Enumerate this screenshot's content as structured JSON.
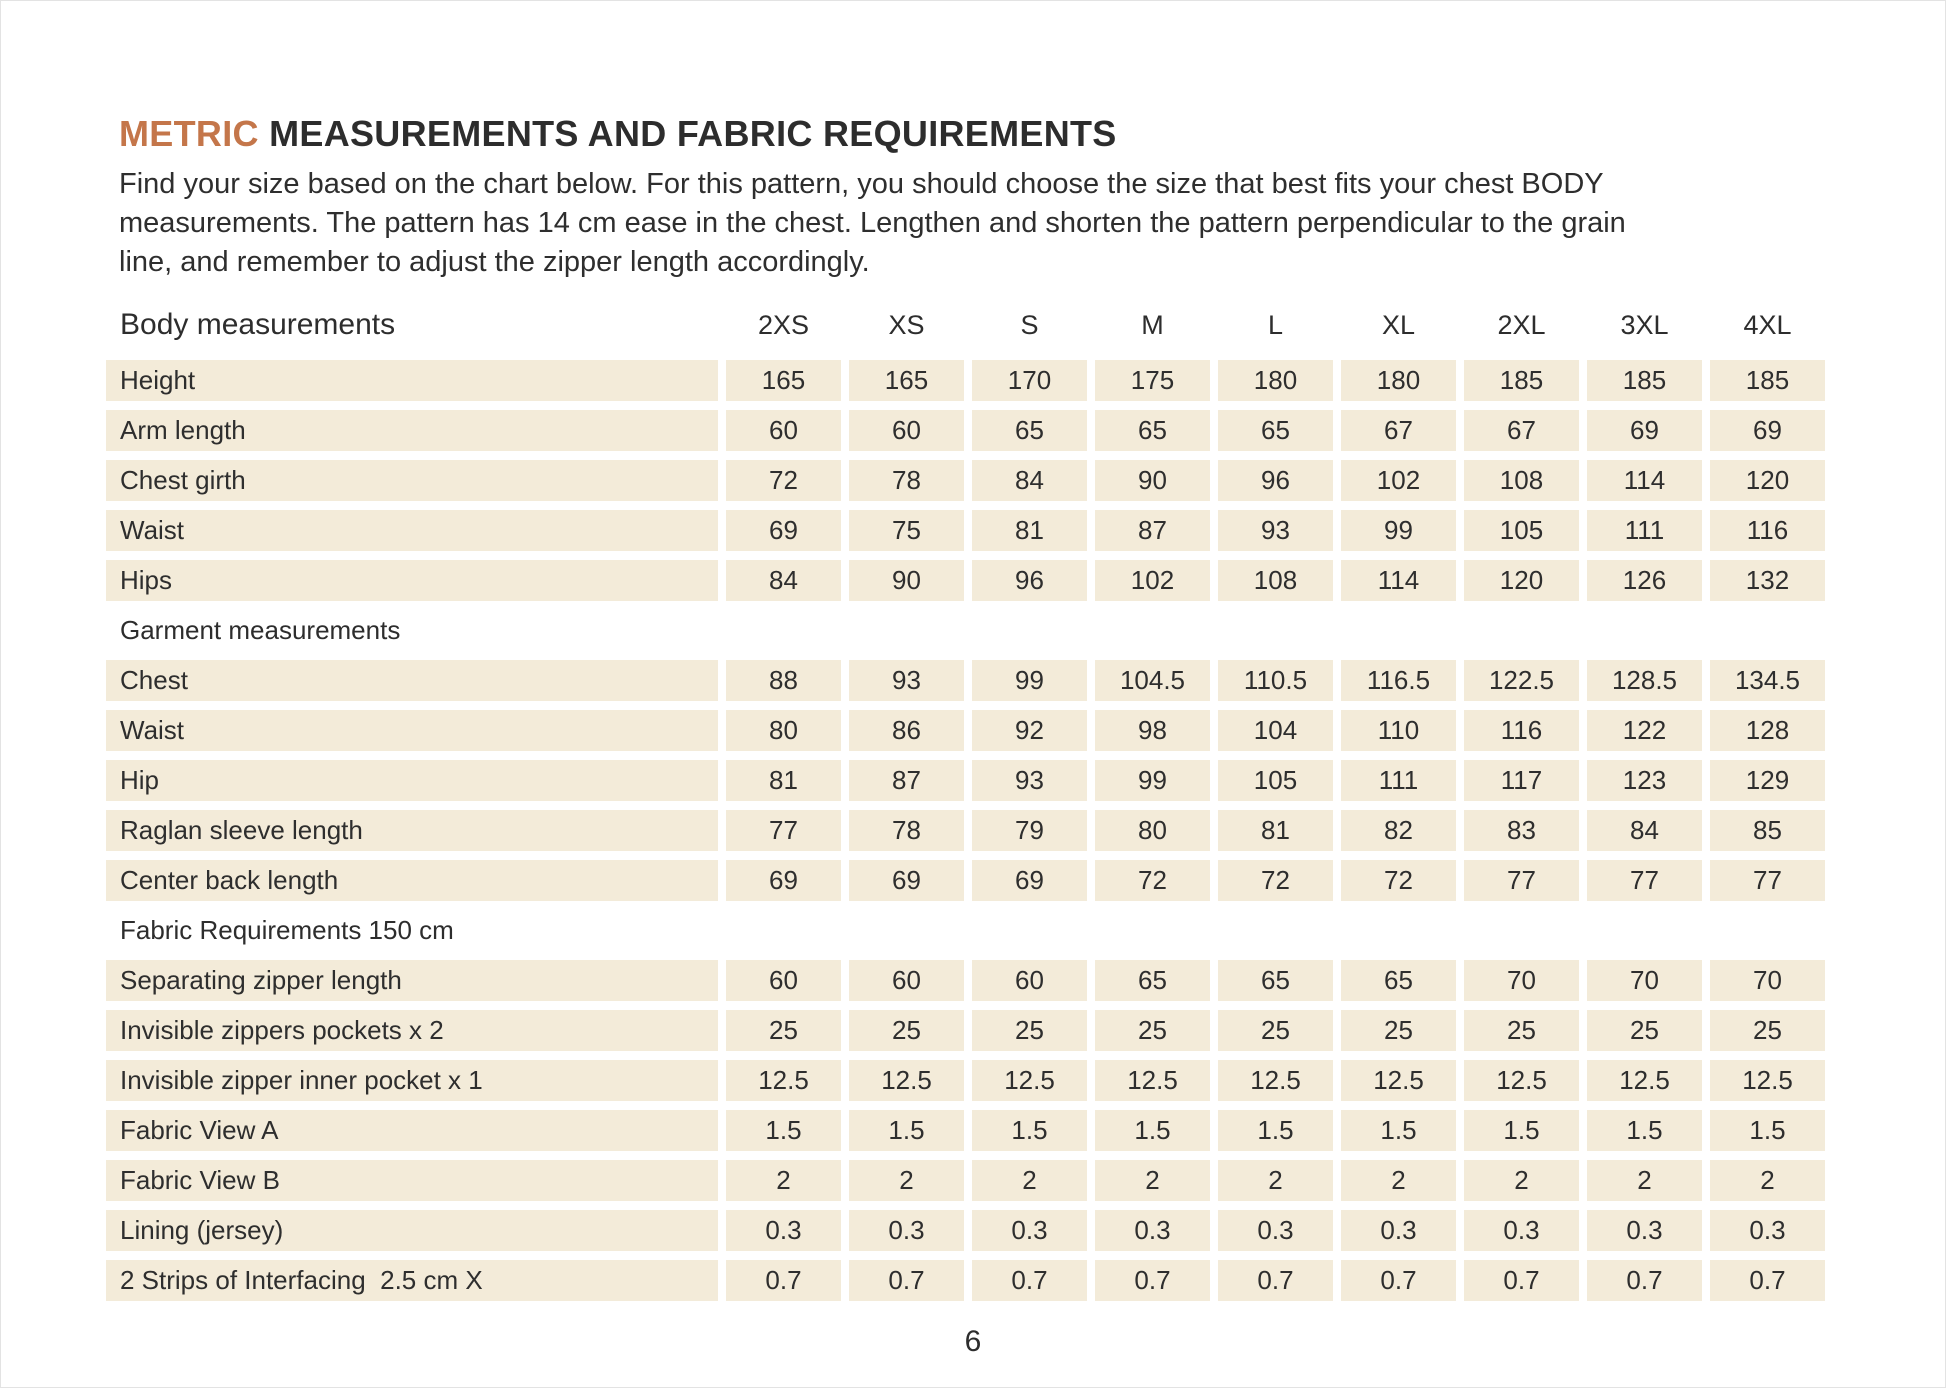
{
  "page": {
    "title_accent": "METRIC",
    "title_rest": " MEASUREMENTS AND FABRIC REQUIREMENTS",
    "intro_lines": [
      "Find your size based on the chart below. For this pattern, you should choose the size that best fits your chest BODY",
      "measurements. The pattern has 14 cm ease in the chest. Lengthen and shorten the pattern perpendicular to the grain",
      "line, and remember to adjust the zipper length accordingly.",
      "Find your size based on the chart below. For this pattern, you should choose the size that best fits your chest BODY measurements. The pattern has 14 cm ease in the chest. Lengthen and shorten the pattern perpendicular to the grain line, and remember to adjust the zipper length accordingly."
    ],
    "page_number": "6"
  },
  "colors": {
    "accent": "#c4764a",
    "cell_background": "#f3ebd9",
    "text": "#2d2d2d"
  },
  "table": {
    "header_label": "Body measurements",
    "sizes": [
      "2XS",
      "XS",
      "S",
      "M",
      "L",
      "XL",
      "2XL",
      "3XL",
      "4XL"
    ],
    "sections": [
      {
        "heading": "",
        "rows": [
          {
            "label": "Height",
            "values": [
              "165",
              "165",
              "170",
              "175",
              "180",
              "180",
              "185",
              "185",
              "185"
            ]
          },
          {
            "label": "Arm length",
            "values": [
              "60",
              "60",
              "65",
              "65",
              "65",
              "67",
              "67",
              "69",
              "69"
            ]
          },
          {
            "label": "Chest girth",
            "values": [
              "72",
              "78",
              "84",
              "90",
              "96",
              "102",
              "108",
              "114",
              "120"
            ]
          },
          {
            "label": "Waist",
            "values": [
              "69",
              "75",
              "81",
              "87",
              "93",
              "99",
              "105",
              "111",
              "116"
            ]
          },
          {
            "label": "Hips",
            "values": [
              "84",
              "90",
              "96",
              "102",
              "108",
              "114",
              "120",
              "126",
              "132"
            ]
          }
        ]
      },
      {
        "heading": "Garment measurements",
        "rows": [
          {
            "label": "Chest",
            "values": [
              "88",
              "93",
              "99",
              "104.5",
              "110.5",
              "116.5",
              "122.5",
              "128.5",
              "134.5"
            ]
          },
          {
            "label": "Waist",
            "values": [
              "80",
              "86",
              "92",
              "98",
              "104",
              "110",
              "116",
              "122",
              "128"
            ]
          },
          {
            "label": "Hip",
            "values": [
              "81",
              "87",
              "93",
              "99",
              "105",
              "111",
              "117",
              "123",
              "129"
            ]
          },
          {
            "label": "Raglan sleeve length",
            "values": [
              "77",
              "78",
              "79",
              "80",
              "81",
              "82",
              "83",
              "84",
              "85"
            ]
          },
          {
            "label": "Center back length",
            "values": [
              "69",
              "69",
              "69",
              "72",
              "72",
              "72",
              "77",
              "77",
              "77"
            ]
          }
        ]
      },
      {
        "heading": "Fabric Requirements 150 cm",
        "rows": [
          {
            "label": "Separating zipper length",
            "values": [
              "60",
              "60",
              "60",
              "65",
              "65",
              "65",
              "70",
              "70",
              "70"
            ]
          },
          {
            "label": "Invisible zippers pockets x 2",
            "values": [
              "25",
              "25",
              "25",
              "25",
              "25",
              "25",
              "25",
              "25",
              "25"
            ]
          },
          {
            "label": "Invisible zipper inner pocket x 1",
            "values": [
              "12.5",
              "12.5",
              "12.5",
              "12.5",
              "12.5",
              "12.5",
              "12.5",
              "12.5",
              "12.5"
            ]
          },
          {
            "label": "Fabric View A",
            "values": [
              "1.5",
              "1.5",
              "1.5",
              "1.5",
              "1.5",
              "1.5",
              "1.5",
              "1.5",
              "1.5"
            ]
          },
          {
            "label": "Fabric View B",
            "values": [
              "2",
              "2",
              "2",
              "2",
              "2",
              "2",
              "2",
              "2",
              "2"
            ]
          },
          {
            "label": "Lining (jersey)",
            "values": [
              "0.3",
              "0.3",
              "0.3",
              "0.3",
              "0.3",
              "0.3",
              "0.3",
              "0.3",
              "0.3"
            ]
          },
          {
            "label": "2 Strips of Interfacing  2.5 cm X",
            "values": [
              "0.7",
              "0.7",
              "0.7",
              "0.7",
              "0.7",
              "0.7",
              "0.7",
              "0.7",
              "0.7"
            ]
          }
        ]
      }
    ]
  }
}
